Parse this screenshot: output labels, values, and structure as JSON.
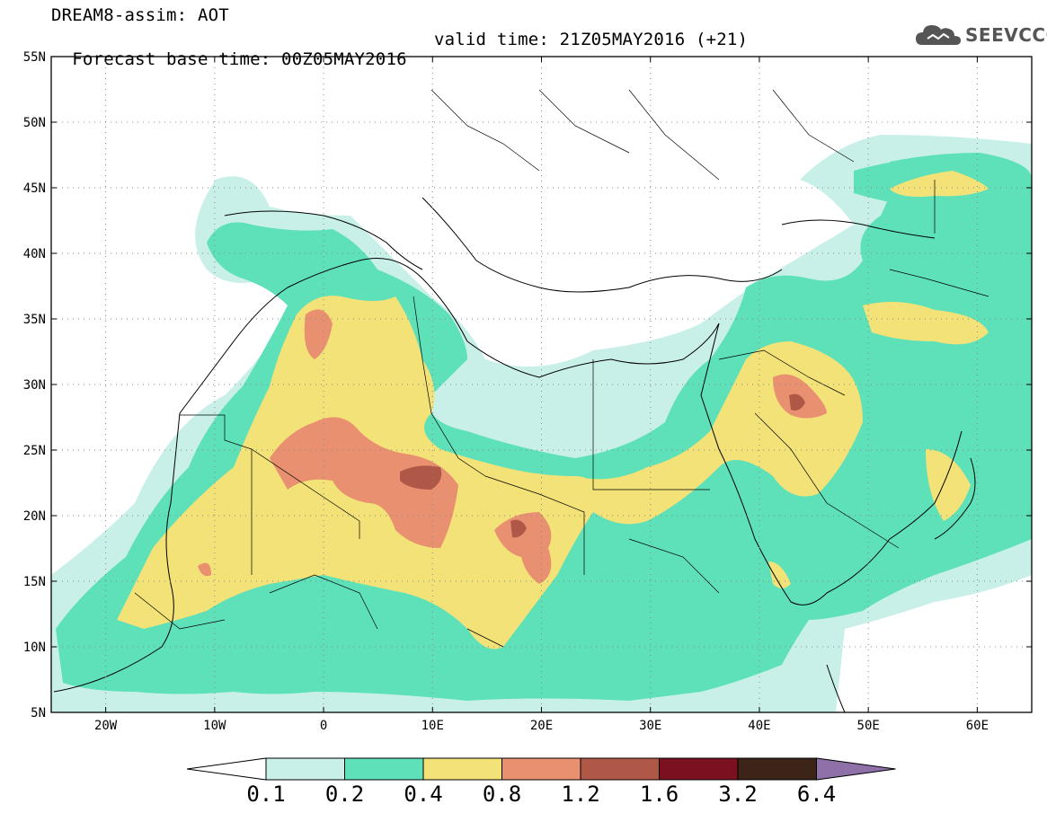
{
  "title": {
    "product": "DREAM8-assim: AOT",
    "base_time": "Forecast base time: 00Z05MAY2016",
    "valid_time": "valid time: 21Z05MAY2016 (+21)"
  },
  "logo": {
    "text": "SEEVCCC",
    "icon": "cloud-icon"
  },
  "map": {
    "projection": "lat-lon",
    "lon_range": [
      -25,
      65
    ],
    "lat_range": [
      5,
      55
    ],
    "lat_ticks": [
      "5N",
      "10N",
      "15N",
      "20N",
      "25N",
      "30N",
      "35N",
      "40N",
      "45N",
      "50N",
      "55N"
    ],
    "lon_ticks": [
      "20W",
      "10W",
      "0",
      "10E",
      "20E",
      "30E",
      "40E",
      "50E",
      "60E"
    ]
  },
  "colorbar": {
    "labels": [
      "0.1",
      "0.2",
      "0.4",
      "0.8",
      "1.2",
      "1.6",
      "3.2",
      "6.4"
    ],
    "colors": [
      "#c8f0e8",
      "#5ee0b8",
      "#f2e278",
      "#e89070",
      "#b05848",
      "#7a1020",
      "#3c2418",
      "#9070a8"
    ],
    "under_color": "#ffffff"
  }
}
